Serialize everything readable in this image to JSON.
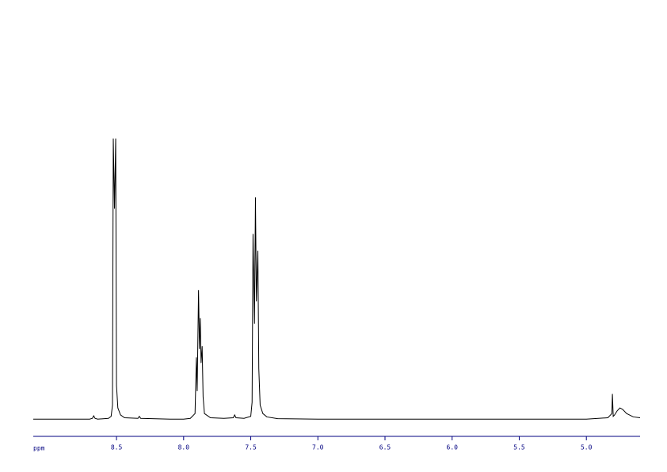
{
  "chart_data": {
    "type": "line",
    "x_label": "ppm",
    "x": [
      9.12,
      8.7,
      8.68,
      8.67,
      8.66,
      8.64,
      8.56,
      8.54,
      8.53,
      8.524,
      8.515,
      8.506,
      8.5,
      8.49,
      8.47,
      8.44,
      8.34,
      8.33,
      8.32,
      8.1,
      8.0,
      7.95,
      7.915,
      7.905,
      7.899,
      7.889,
      7.882,
      7.876,
      7.87,
      7.862,
      7.855,
      7.845,
      7.8,
      7.7,
      7.63,
      7.62,
      7.61,
      7.55,
      7.5,
      7.49,
      7.483,
      7.472,
      7.465,
      7.458,
      7.447,
      7.44,
      7.43,
      7.41,
      7.38,
      7.3,
      7.0,
      6.0,
      5.0,
      4.84,
      4.81,
      4.806,
      4.8,
      4.79,
      4.77,
      4.75,
      4.73,
      4.7,
      4.65,
      4.6
    ],
    "values": [
      0,
      0,
      0.3,
      1.2,
      0.3,
      0,
      0.3,
      1,
      5,
      100,
      75,
      100,
      12,
      4,
      1.5,
      0.5,
      0.3,
      1,
      0.3,
      0,
      0,
      0.3,
      2,
      22,
      10,
      46,
      25,
      36,
      20,
      26,
      8,
      2,
      0.5,
      0.3,
      0.5,
      1.5,
      0.5,
      0.3,
      1,
      6,
      66,
      34,
      79,
      42,
      60,
      18,
      5,
      2,
      0.8,
      0.2,
      0,
      0,
      0,
      0.5,
      2,
      9,
      1,
      1.5,
      3,
      4,
      3.5,
      2,
      0.8,
      0.5
    ],
    "color": "#000000",
    "axis_color": "#000080",
    "xlim": [
      9.12,
      4.6
    ],
    "ylim": [
      -5,
      120
    ],
    "xticks": [
      8.5,
      {
        "value": 8,
        "label": "8.0"
      },
      7.5,
      {
        "value": 7,
        "label": "7.0"
      },
      6.5,
      {
        "value": 6,
        "label": "6.0"
      },
      5.5,
      {
        "value": 5,
        "label": "5.0"
      }
    ]
  }
}
